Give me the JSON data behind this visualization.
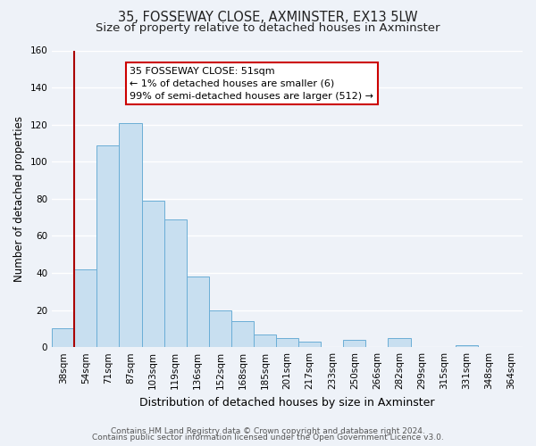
{
  "title": "35, FOSSEWAY CLOSE, AXMINSTER, EX13 5LW",
  "subtitle": "Size of property relative to detached houses in Axminster",
  "xlabel": "Distribution of detached houses by size in Axminster",
  "ylabel": "Number of detached properties",
  "bar_labels": [
    "38sqm",
    "54sqm",
    "71sqm",
    "87sqm",
    "103sqm",
    "119sqm",
    "136sqm",
    "152sqm",
    "168sqm",
    "185sqm",
    "201sqm",
    "217sqm",
    "233sqm",
    "250sqm",
    "266sqm",
    "282sqm",
    "299sqm",
    "315sqm",
    "331sqm",
    "348sqm",
    "364sqm"
  ],
  "bar_values": [
    10,
    42,
    109,
    121,
    79,
    69,
    38,
    20,
    14,
    7,
    5,
    3,
    0,
    4,
    0,
    5,
    0,
    0,
    1,
    0,
    0
  ],
  "bar_color": "#c8dff0",
  "bar_edge_color": "#6baed6",
  "highlight_edge_color": "#aa0000",
  "annotation_title": "35 FOSSEWAY CLOSE: 51sqm",
  "annotation_line1": "← 1% of detached houses are smaller (6)",
  "annotation_line2": "99% of semi-detached houses are larger (512) →",
  "annotation_box_color": "#ffffff",
  "annotation_box_edge_color": "#cc0000",
  "red_line_x": 0.5,
  "ylim": [
    0,
    160
  ],
  "yticks": [
    0,
    20,
    40,
    60,
    80,
    100,
    120,
    140,
    160
  ],
  "footer1": "Contains HM Land Registry data © Crown copyright and database right 2024.",
  "footer2": "Contains public sector information licensed under the Open Government Licence v3.0.",
  "background_color": "#eef2f8",
  "plot_bg_color": "#eef2f8",
  "grid_color": "#ffffff",
  "title_fontsize": 10.5,
  "subtitle_fontsize": 9.5,
  "xlabel_fontsize": 9,
  "ylabel_fontsize": 8.5,
  "tick_fontsize": 7.5,
  "footer_fontsize": 6.5
}
